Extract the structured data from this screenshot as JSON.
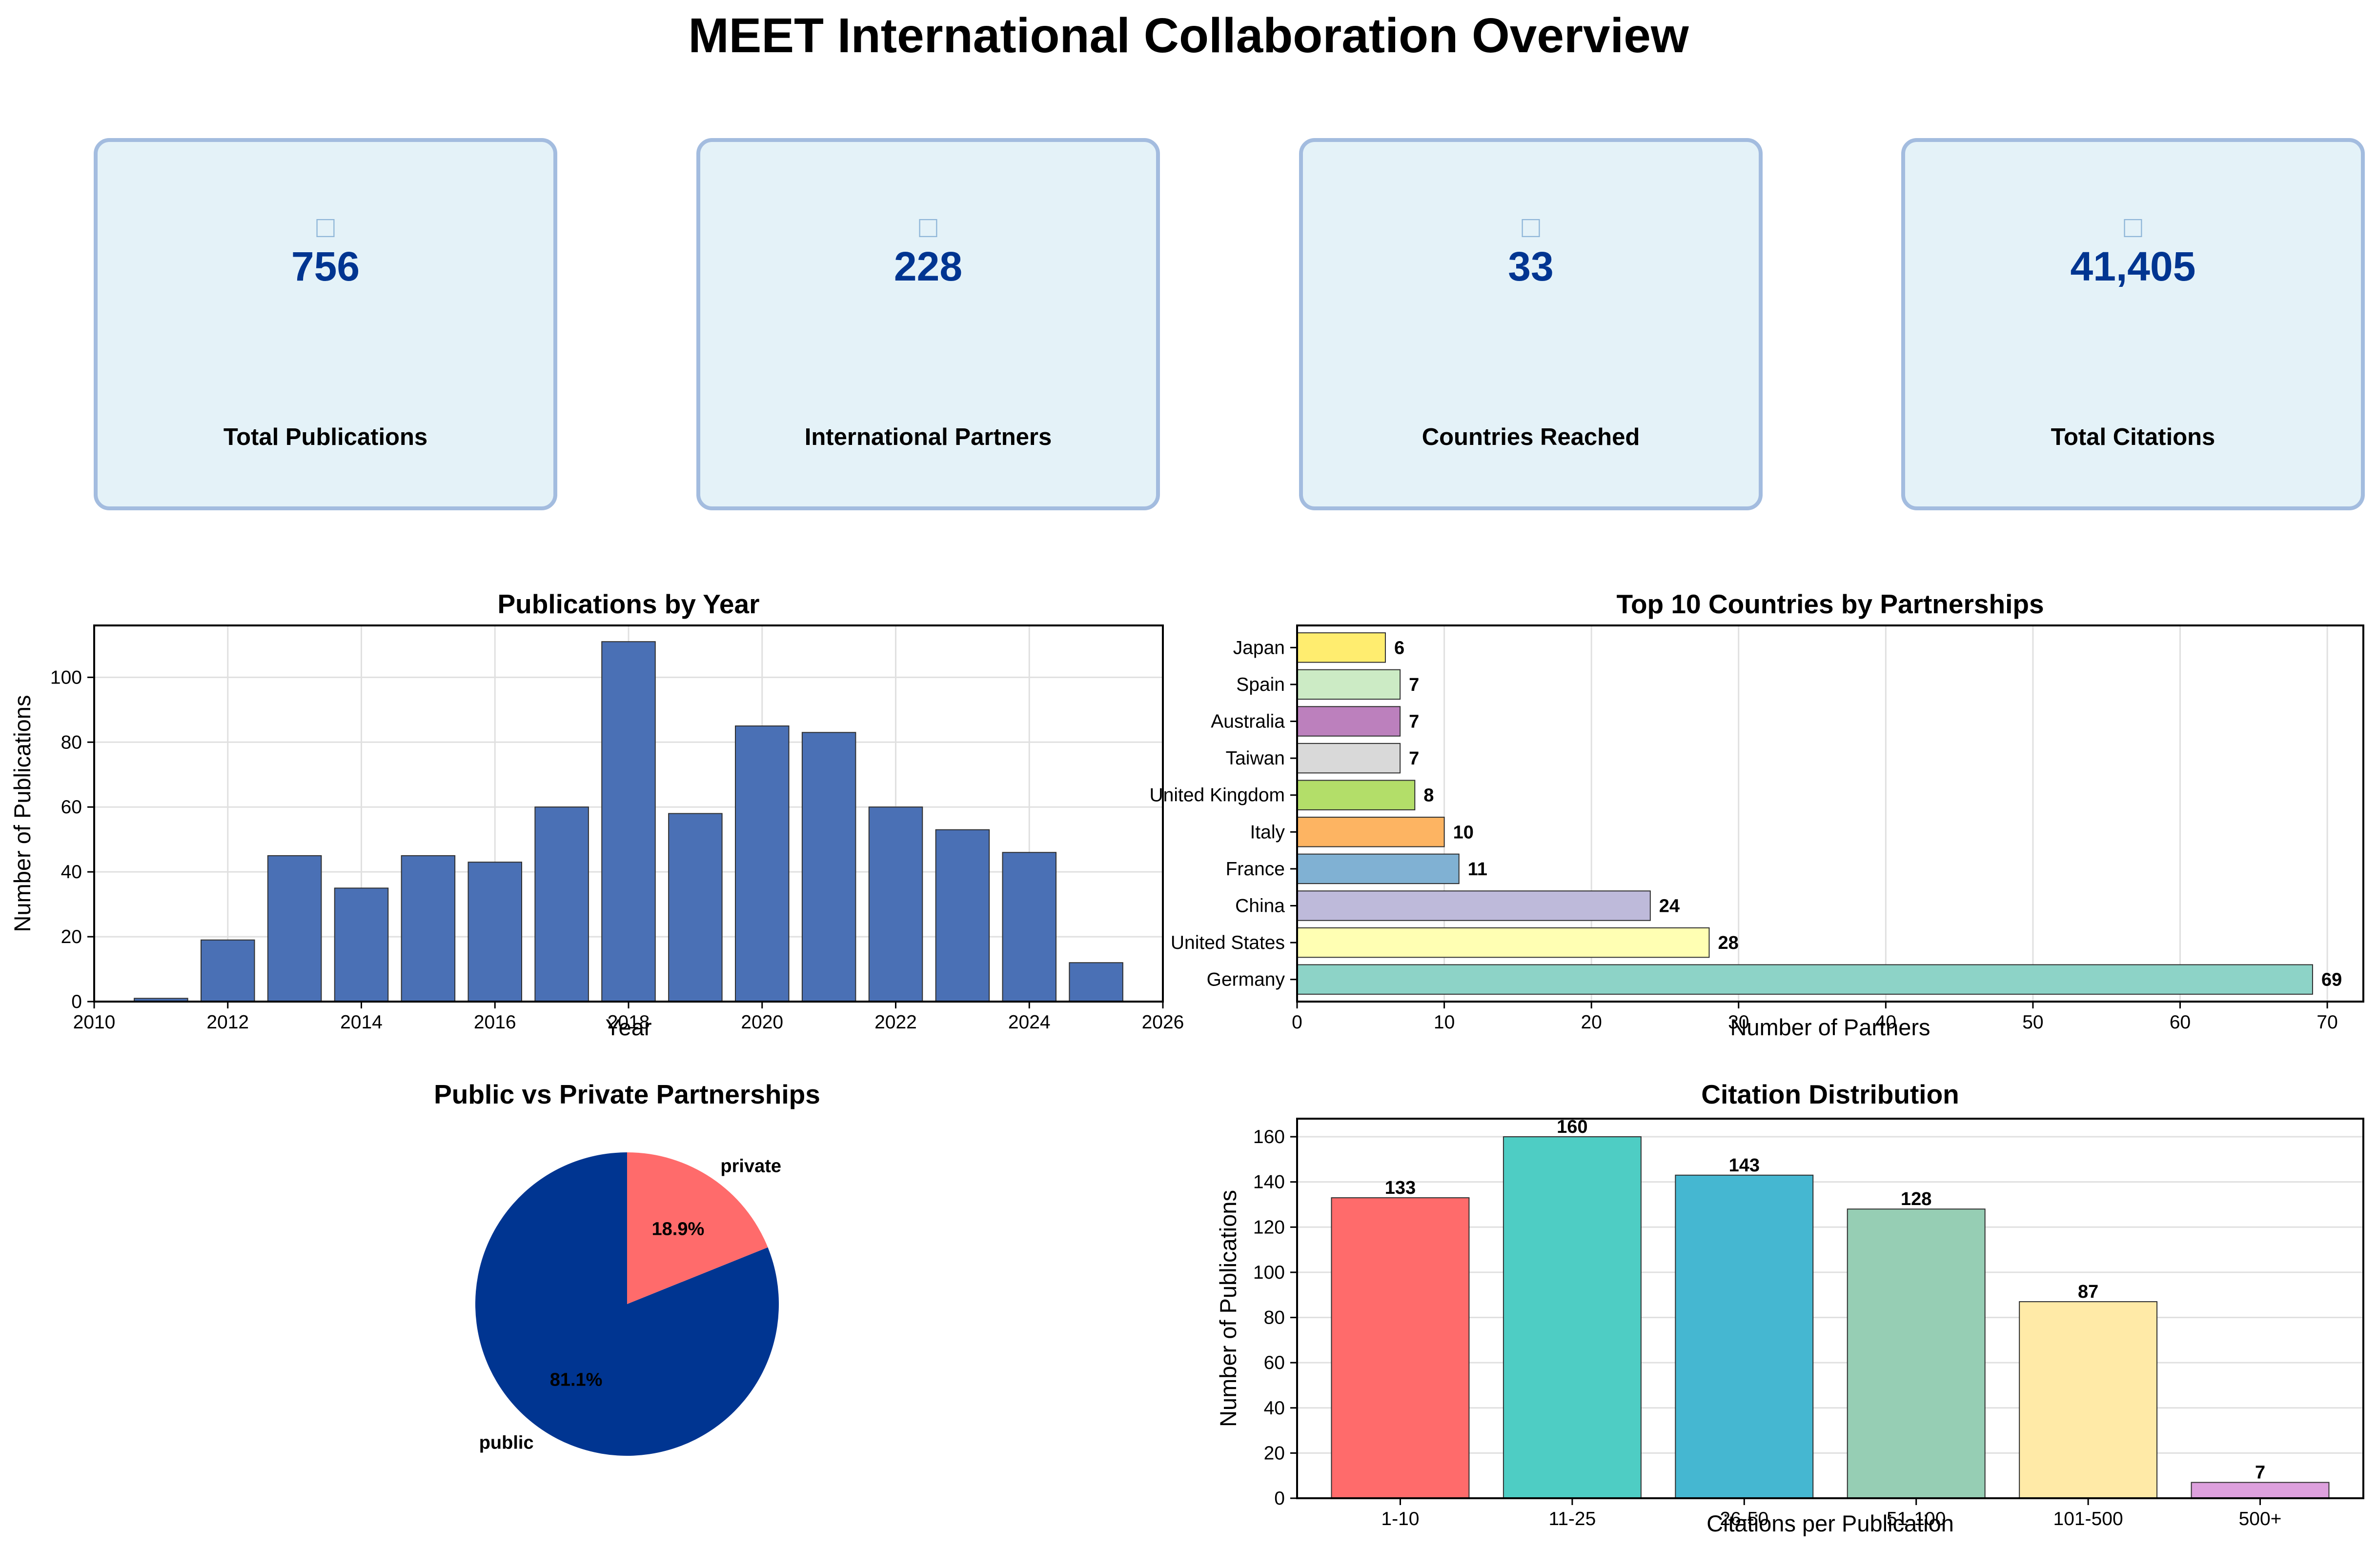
{
  "title": "MEET International Collaboration Overview",
  "kpis": [
    {
      "icon": "document-icon",
      "value": "756",
      "label": "Total Publications"
    },
    {
      "icon": "handshake-icon",
      "value": "228",
      "label": "International Partners"
    },
    {
      "icon": "globe-icon",
      "value": "33",
      "label": "Countries Reached"
    },
    {
      "icon": "chart-icon",
      "value": "41,405",
      "label": "Total Citations"
    }
  ],
  "chart_data": [
    {
      "type": "bar",
      "title": "Publications by Year",
      "xlabel": "Year",
      "ylabel": "Number of Publications",
      "x": [
        2011,
        2012,
        2013,
        2014,
        2015,
        2016,
        2017,
        2018,
        2019,
        2020,
        2021,
        2022,
        2023,
        2024,
        2025
      ],
      "values": [
        1,
        19,
        45,
        35,
        45,
        43,
        60,
        111,
        58,
        85,
        83,
        60,
        53,
        46,
        12
      ],
      "xlim": [
        2010,
        2026
      ],
      "ylim": [
        0,
        116
      ],
      "xticks": [
        2010,
        2012,
        2014,
        2016,
        2018,
        2020,
        2022,
        2024,
        2026
      ],
      "yticks": [
        0,
        20,
        40,
        60,
        80,
        100
      ],
      "color": "#4a70b5",
      "grid": true
    },
    {
      "type": "bar",
      "orientation": "horizontal",
      "title": "Top 10 Countries by Partnerships",
      "xlabel": "Number of Partners",
      "ylabel": "",
      "categories": [
        "Germany",
        "United States",
        "China",
        "France",
        "Italy",
        "United Kingdom",
        "Taiwan",
        "Australia",
        "Spain",
        "Japan"
      ],
      "values": [
        69,
        28,
        24,
        11,
        10,
        8,
        7,
        7,
        7,
        6
      ],
      "colors": [
        "#8dd3c7",
        "#ffffb3",
        "#bebada",
        "#80b1d3",
        "#fdb462",
        "#b3de69",
        "#d9d9d9",
        "#bc80bd",
        "#ccebc5",
        "#ffed6f"
      ],
      "xlim": [
        0,
        72.45
      ],
      "xticks": [
        0,
        10,
        20,
        30,
        40,
        50,
        60,
        70
      ],
      "grid": true
    },
    {
      "type": "pie",
      "title": "Public vs Private Partnerships",
      "categories": [
        "public",
        "private"
      ],
      "values": [
        81.1,
        18.9
      ],
      "labels": [
        "81.1%",
        "18.9%"
      ],
      "colors": [
        "#003591",
        "#ff6b6b"
      ]
    },
    {
      "type": "bar",
      "title": "Citation Distribution",
      "xlabel": "Citations per Publication",
      "ylabel": "Number of Publications",
      "categories": [
        "1-10",
        "11-25",
        "26-50",
        "51-100",
        "101-500",
        "500+"
      ],
      "values": [
        133,
        160,
        143,
        128,
        87,
        7
      ],
      "colors": [
        "#ff6b6b",
        "#4ecdc4",
        "#45b7d1",
        "#96ceb4",
        "#ffeaa7",
        "#dda0dd"
      ],
      "ylim": [
        0,
        168
      ],
      "yticks": [
        0,
        20,
        40,
        60,
        80,
        100,
        120,
        140,
        160
      ],
      "grid": true
    }
  ]
}
